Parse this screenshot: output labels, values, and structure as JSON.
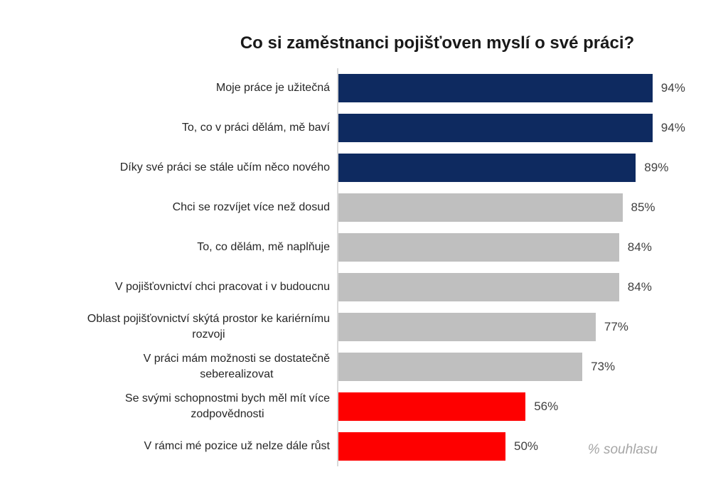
{
  "chart_data": {
    "type": "bar",
    "orientation": "horizontal",
    "title": "Co si zaměstnanci pojišťoven myslí o své práci?",
    "note": "% souhlasu",
    "unit": "%",
    "xlim": [
      0,
      100
    ],
    "grid": false,
    "legend": false,
    "categories": [
      "Moje práce je užitečná",
      "To, co v práci dělám, mě baví",
      "Díky své práci se stále učím něco nového",
      "Chci se rozvíjet více než dosud",
      "To, co dělám, mě naplňuje",
      "V pojišťovnictví chci pracovat i v budoucnu",
      "Oblast pojišťovnictví skýtá prostor ke kariérnímu\nrozvoji",
      "V práci mám možnosti se dostatečně\nseberealizovat",
      "Se svými schopnostmi bych měl mít více\nzodpovědnosti",
      "V rámci mé pozice už nelze dále růst"
    ],
    "values": [
      94,
      94,
      89,
      85,
      84,
      84,
      77,
      73,
      56,
      50
    ],
    "tones": [
      "positive",
      "positive",
      "positive",
      "neutral",
      "neutral",
      "neutral",
      "neutral",
      "neutral",
      "negative",
      "negative"
    ],
    "colors": {
      "positive": "#0e2a60",
      "neutral": "#bfbfbf",
      "negative": "#fe0000"
    }
  }
}
